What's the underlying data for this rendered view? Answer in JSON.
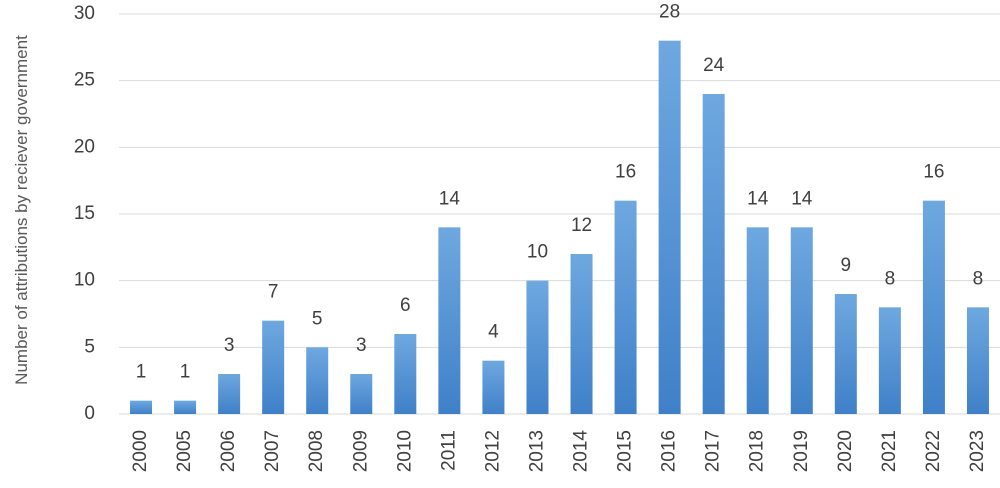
{
  "chart_data": {
    "type": "bar",
    "y_label": "Number of attributions by reciever government",
    "categories": [
      "2000",
      "2005",
      "2006",
      "2007",
      "2008",
      "2009",
      "2010",
      "2011",
      "2012",
      "2013",
      "2014",
      "2015",
      "2016",
      "2017",
      "2018",
      "2019",
      "2020",
      "2021",
      "2022",
      "2023"
    ],
    "values": [
      1,
      1,
      3,
      7,
      5,
      3,
      6,
      14,
      4,
      10,
      12,
      16,
      28,
      24,
      14,
      14,
      9,
      8,
      16,
      8
    ],
    "color": "#5b9bd5",
    "ylim": [
      0,
      30
    ],
    "yticks": [
      0,
      5,
      10,
      15,
      20,
      25,
      30
    ],
    "grid": true
  }
}
